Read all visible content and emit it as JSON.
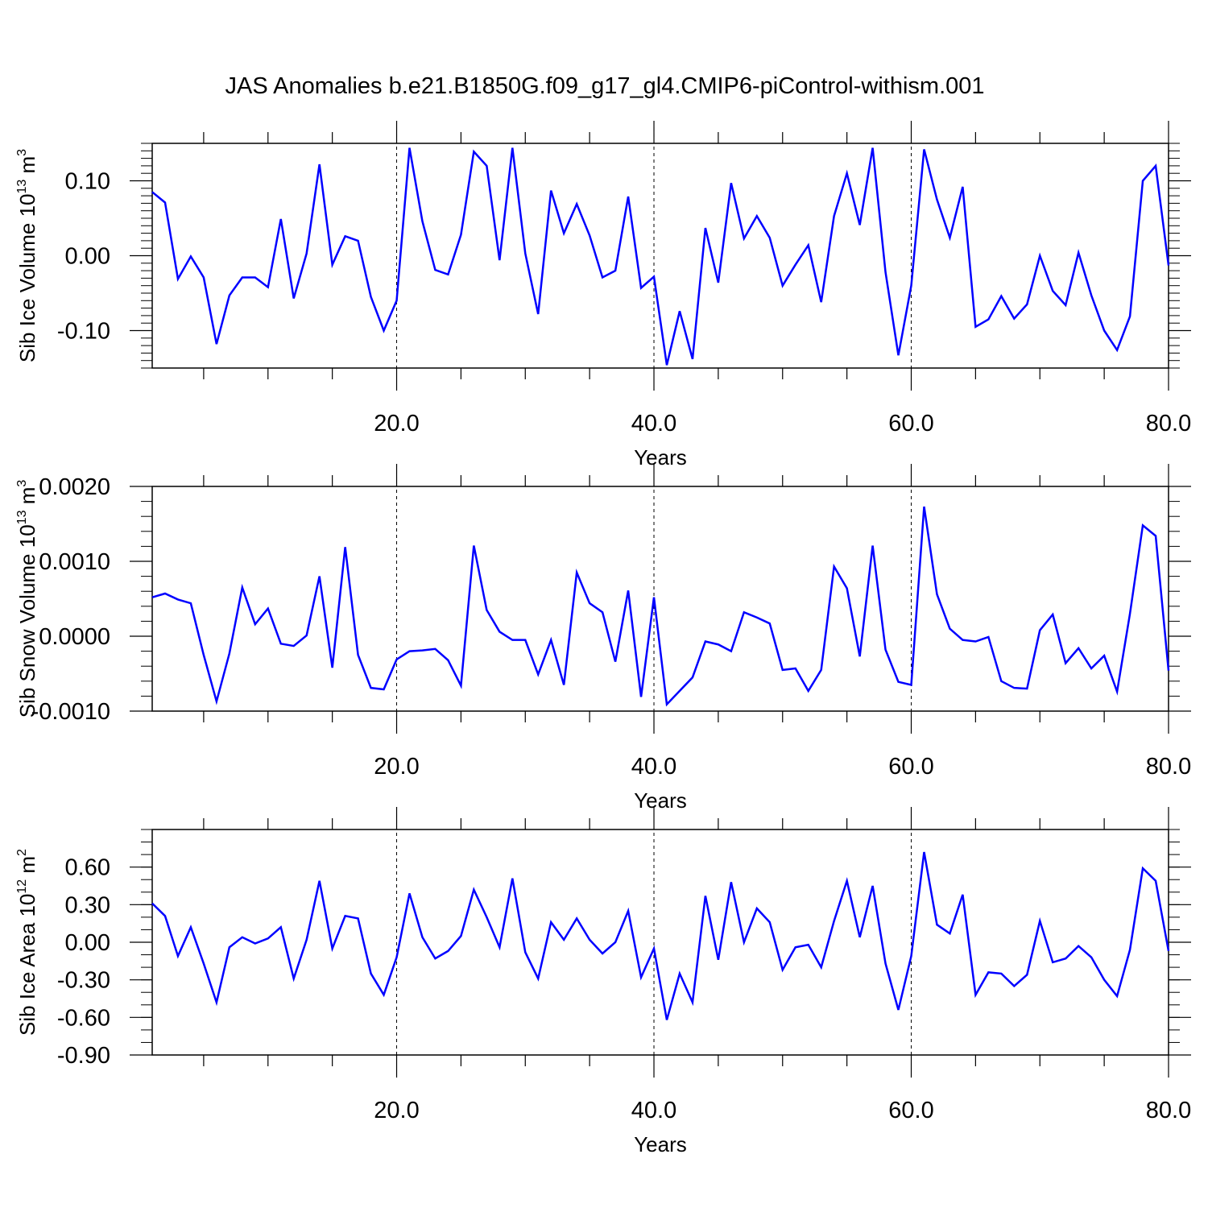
{
  "chart_data": [
    {
      "type": "line",
      "title": "JAS Anomalies b.e21.B1850G.f09_g17_gl4.CMIP6-piControl-withism.001",
      "xlabel": "Years",
      "ylabel": {
        "text": "Sib Ice Volume 10",
        "exponent": "13",
        "unit": " m",
        "unit_exponent": "3"
      },
      "xlim": [
        1,
        80
      ],
      "ylim": [
        -0.15,
        0.15
      ],
      "x_ticks": [
        20,
        40,
        60,
        80
      ],
      "x_tick_labels": [
        "20.0",
        "40.0",
        "60.0",
        "80.0"
      ],
      "y_ticks": [
        -0.1,
        0.0,
        0.1
      ],
      "y_tick_labels": [
        "-0.10",
        "0.00",
        "0.10"
      ],
      "reference_lines_x": [
        20,
        40,
        60
      ],
      "line_color": "#0000ff",
      "x": [
        1,
        2,
        3,
        4,
        5,
        6,
        7,
        8,
        9,
        10,
        11,
        12,
        13,
        14,
        15,
        16,
        17,
        18,
        19,
        20,
        21,
        22,
        23,
        24,
        25,
        26,
        27,
        28,
        29,
        30,
        31,
        32,
        33,
        34,
        35,
        36,
        37,
        38,
        39,
        40,
        41,
        42,
        43,
        44,
        45,
        46,
        47,
        48,
        49,
        50,
        51,
        52,
        53,
        54,
        55,
        56,
        57,
        58,
        59,
        60,
        61,
        62,
        63,
        64,
        65,
        66,
        67,
        68,
        69,
        70,
        71,
        72,
        73,
        74,
        75,
        76,
        77,
        78,
        79,
        80
      ],
      "values": [
        0.085,
        0.071,
        -0.031,
        -0.001,
        -0.029,
        -0.118,
        -0.053,
        -0.029,
        -0.029,
        -0.042,
        0.049,
        -0.057,
        0.003,
        0.122,
        -0.012,
        0.026,
        0.02,
        -0.055,
        -0.1,
        -0.06,
        0.144,
        0.046,
        -0.019,
        -0.025,
        0.028,
        0.139,
        0.12,
        -0.006,
        0.144,
        0.003,
        -0.078,
        0.087,
        0.03,
        0.069,
        0.027,
        -0.029,
        -0.02,
        0.079,
        -0.043,
        -0.028,
        -0.146,
        -0.074,
        -0.138,
        0.037,
        -0.036,
        0.097,
        0.023,
        0.053,
        0.024,
        -0.04,
        -0.012,
        0.014,
        -0.062,
        0.053,
        0.11,
        0.041,
        0.144,
        -0.022,
        -0.133,
        -0.04,
        0.142,
        0.075,
        0.024,
        0.092,
        -0.095,
        -0.085,
        -0.054,
        -0.084,
        -0.065,
        0.0,
        -0.047,
        -0.066,
        0.004,
        -0.053,
        -0.1,
        -0.126,
        -0.081,
        0.1,
        0.12,
        -0.013
      ]
    },
    {
      "type": "line",
      "title": "",
      "xlabel": "Years",
      "ylabel": {
        "text": "Sib Snow Volume 10",
        "exponent": "13",
        "unit": " m",
        "unit_exponent": "3"
      },
      "xlim": [
        1,
        80
      ],
      "ylim": [
        -0.001,
        0.002
      ],
      "x_ticks": [
        20,
        40,
        60,
        80
      ],
      "x_tick_labels": [
        "20.0",
        "40.0",
        "60.0",
        "80.0"
      ],
      "y_ticks": [
        -0.001,
        0.0,
        0.001,
        0.002
      ],
      "y_tick_labels": [
        "-0.0010",
        "0.0000",
        "0.0010",
        "0.0020"
      ],
      "reference_lines_x": [
        20,
        40,
        60
      ],
      "line_color": "#0000ff",
      "x": [
        1,
        2,
        3,
        4,
        5,
        6,
        7,
        8,
        9,
        10,
        11,
        12,
        13,
        14,
        15,
        16,
        17,
        18,
        19,
        20,
        21,
        22,
        23,
        24,
        25,
        26,
        27,
        28,
        29,
        30,
        31,
        32,
        33,
        34,
        35,
        36,
        37,
        38,
        39,
        40,
        41,
        42,
        43,
        44,
        45,
        46,
        47,
        48,
        49,
        50,
        51,
        52,
        53,
        54,
        55,
        56,
        57,
        58,
        59,
        60,
        61,
        62,
        63,
        64,
        65,
        66,
        67,
        68,
        69,
        70,
        71,
        72,
        73,
        74,
        75,
        76,
        77,
        78,
        79,
        80
      ],
      "values": [
        0.00052,
        0.00057,
        0.00049,
        0.00044,
        -0.00025,
        -0.00087,
        -0.00023,
        0.00065,
        0.00016,
        0.00037,
        -0.0001,
        -0.00013,
        1e-05,
        0.0008,
        -0.00042,
        0.00119,
        -0.00025,
        -0.00069,
        -0.00071,
        -0.00031,
        -0.0002,
        -0.00019,
        -0.00017,
        -0.00032,
        -0.00066,
        0.00121,
        0.00035,
        6e-05,
        -5e-05,
        -5e-05,
        -0.00051,
        -5e-05,
        -0.00065,
        0.00085,
        0.00044,
        0.00032,
        -0.00034,
        0.00061,
        -0.00081,
        0.00052,
        -0.00091,
        -0.00073,
        -0.00055,
        -7e-05,
        -0.00011,
        -0.0002,
        0.00032,
        0.00025,
        0.00017,
        -0.00045,
        -0.00043,
        -0.00073,
        -0.00045,
        0.00093,
        0.00064,
        -0.00027,
        0.00121,
        -0.00018,
        -0.00061,
        -0.00065,
        0.00173,
        0.00056,
        0.0001,
        -5e-05,
        -7e-05,
        -1e-05,
        -0.0006,
        -0.00069,
        -0.0007,
        8e-05,
        0.00029,
        -0.00036,
        -0.00016,
        -0.00043,
        -0.00026,
        -0.00074,
        0.0003,
        0.00148,
        0.00134,
        -0.00046
      ]
    },
    {
      "type": "line",
      "title": "",
      "xlabel": "Years",
      "ylabel": {
        "text": "Sib Ice Area 10",
        "exponent": "12",
        "unit": " m",
        "unit_exponent": "2"
      },
      "xlim": [
        1,
        80
      ],
      "ylim": [
        -0.9,
        0.9
      ],
      "x_ticks": [
        20,
        40,
        60,
        80
      ],
      "x_tick_labels": [
        "20.0",
        "40.0",
        "60.0",
        "80.0"
      ],
      "y_ticks": [
        -0.9,
        -0.6,
        -0.3,
        0.0,
        0.3,
        0.6
      ],
      "y_tick_labels": [
        "-0.90",
        "-0.60",
        "-0.30",
        "0.00",
        "0.30",
        "0.60"
      ],
      "reference_lines_x": [
        20,
        40,
        60
      ],
      "line_color": "#0000ff",
      "x": [
        1,
        2,
        3,
        4,
        5,
        6,
        7,
        8,
        9,
        10,
        11,
        12,
        13,
        14,
        15,
        16,
        17,
        18,
        19,
        20,
        21,
        22,
        23,
        24,
        25,
        26,
        27,
        28,
        29,
        30,
        31,
        32,
        33,
        34,
        35,
        36,
        37,
        38,
        39,
        40,
        41,
        42,
        43,
        44,
        45,
        46,
        47,
        48,
        49,
        50,
        51,
        52,
        53,
        54,
        55,
        56,
        57,
        58,
        59,
        60,
        61,
        62,
        63,
        64,
        65,
        66,
        67,
        68,
        69,
        70,
        71,
        72,
        73,
        74,
        75,
        76,
        77,
        78,
        79,
        80
      ],
      "values": [
        0.31,
        0.21,
        -0.11,
        0.12,
        -0.17,
        -0.48,
        -0.04,
        0.04,
        -0.01,
        0.03,
        0.12,
        -0.29,
        0.02,
        0.49,
        -0.05,
        0.21,
        0.19,
        -0.25,
        -0.42,
        -0.12,
        0.39,
        0.04,
        -0.13,
        -0.07,
        0.05,
        0.42,
        0.2,
        -0.04,
        0.51,
        -0.08,
        -0.29,
        0.16,
        0.02,
        0.19,
        0.02,
        -0.09,
        0.0,
        0.25,
        -0.28,
        -0.05,
        -0.62,
        -0.25,
        -0.48,
        0.37,
        -0.14,
        0.48,
        0.0,
        0.27,
        0.16,
        -0.22,
        -0.04,
        -0.02,
        -0.2,
        0.17,
        0.49,
        0.04,
        0.45,
        -0.17,
        -0.54,
        -0.11,
        0.72,
        0.14,
        0.07,
        0.38,
        -0.42,
        -0.24,
        -0.25,
        -0.35,
        -0.26,
        0.17,
        -0.16,
        -0.13,
        -0.03,
        -0.12,
        -0.3,
        -0.43,
        -0.06,
        0.59,
        0.49,
        -0.07
      ]
    }
  ]
}
